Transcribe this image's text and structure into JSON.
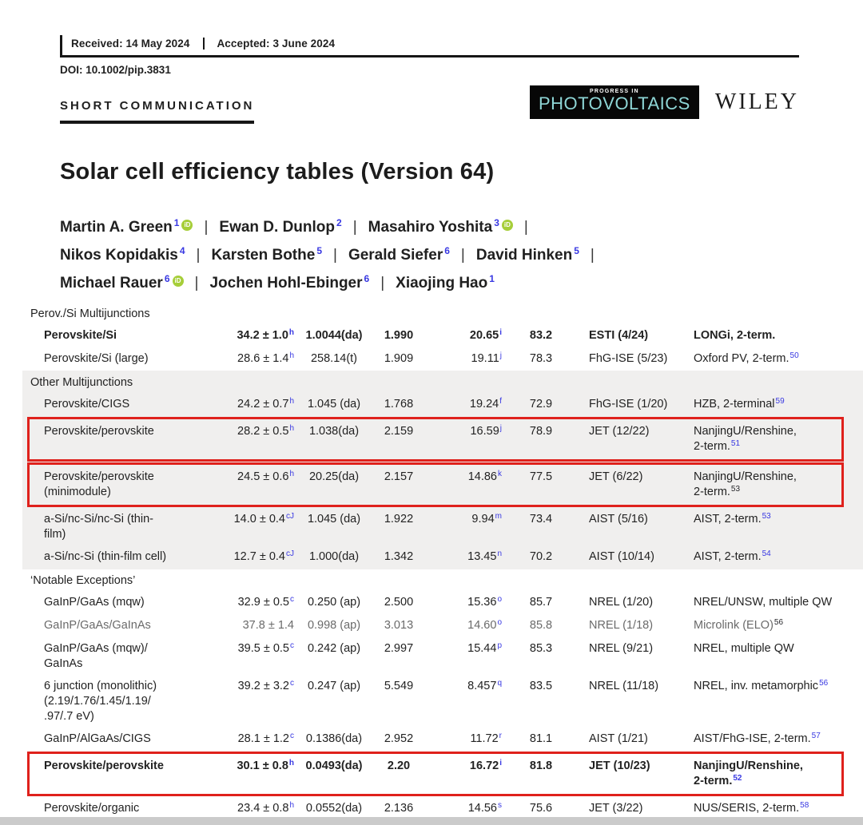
{
  "header": {
    "received_label": "Received: 14 May 2024",
    "accepted_label": "Accepted: 3 June 2024",
    "doi": "DOI: 10.1002/pip.3831",
    "article_type": "SHORT COMMUNICATION",
    "journal_logo": {
      "tagline": "PROGRESS IN",
      "name": "PHOTOVOLTAICS",
      "bg_color": "#070707",
      "text_color": "#8ed6d6"
    },
    "publisher": "WILEY"
  },
  "title": "Solar cell efficiency tables (Version 64)",
  "author_separator": "|",
  "orcid_badge_label": "iD",
  "authors": [
    {
      "name": "Martin A. Green",
      "sup": "1",
      "orcid": true
    },
    {
      "name": "Ewan D. Dunlop",
      "sup": "2",
      "orcid": false
    },
    {
      "name": "Masahiro Yoshita",
      "sup": "3",
      "orcid": true
    },
    {
      "name": "Nikos Kopidakis",
      "sup": "4",
      "orcid": false
    },
    {
      "name": "Karsten Bothe",
      "sup": "5",
      "orcid": false
    },
    {
      "name": "Gerald Siefer",
      "sup": "6",
      "orcid": false
    },
    {
      "name": "David Hinken",
      "sup": "5",
      "orcid": false
    },
    {
      "name": "Michael Rauer",
      "sup": "6",
      "orcid": true
    },
    {
      "name": "Jochen Hohl-Ebinger",
      "sup": "6",
      "orcid": false
    },
    {
      "name": "Xiaojing Hao",
      "sup": "1",
      "orcid": false
    }
  ],
  "authors_lines": [
    [
      0,
      1,
      2
    ],
    [
      3,
      4,
      5,
      6
    ],
    [
      7,
      8,
      9
    ]
  ],
  "table": {
    "sections": [
      {
        "label": "Perov./Si Multijunctions",
        "band": false,
        "rows": [
          {
            "classification": "Perovskite/Si",
            "bold": true,
            "gray": false,
            "highlight": false,
            "efficiency": "34.2 ± 1.0",
            "eff_sup": "h",
            "area": "1.0044(da)",
            "voc": "1.990",
            "jsc": "20.65",
            "jsc_sup": "i",
            "ff": "83.2",
            "test_centre": "ESTI (4/24)",
            "description": "LONGi, 2-term.",
            "desc_sup": "",
            "desc_sup_dark": false
          },
          {
            "classification": "Perovskite/Si (large)",
            "bold": false,
            "gray": false,
            "highlight": false,
            "efficiency": "28.6 ± 1.4",
            "eff_sup": "h",
            "area": "258.14(t)",
            "voc": "1.909",
            "jsc": "19.11",
            "jsc_sup": "j",
            "ff": "78.3",
            "test_centre": "FhG-ISE (5/23)",
            "description": "Oxford PV, 2-term.",
            "desc_sup": "50",
            "desc_sup_dark": false
          }
        ]
      },
      {
        "label": "Other Multijunctions",
        "band": true,
        "rows": [
          {
            "classification": "Perovskite/CIGS",
            "bold": false,
            "gray": false,
            "highlight": false,
            "efficiency": "24.2 ± 0.7",
            "eff_sup": "h",
            "area": "1.045 (da)",
            "voc": "1.768",
            "jsc": "19.24",
            "jsc_sup": "f",
            "ff": "72.9",
            "test_centre": "FhG-ISE (1/20)",
            "description": "HZB, 2-terminal",
            "desc_sup": "59",
            "desc_sup_dark": false
          },
          {
            "classification": "Perovskite/perovskite",
            "bold": false,
            "gray": false,
            "highlight": true,
            "efficiency": "28.2 ± 0.5",
            "eff_sup": "h",
            "area": "1.038(da)",
            "voc": "2.159",
            "jsc": "16.59",
            "jsc_sup": "j",
            "ff": "78.9",
            "test_centre": "JET (12/22)",
            "description": "NanjingU/Renshine,\n2-term.",
            "desc_sup": "51",
            "desc_sup_dark": false
          },
          {
            "classification": "Perovskite/perovskite\n(minimodule)",
            "bold": false,
            "gray": false,
            "highlight": true,
            "efficiency": "24.5 ± 0.6",
            "eff_sup": "h",
            "area": "20.25(da)",
            "voc": "2.157",
            "jsc": "14.86",
            "jsc_sup": "k",
            "ff": "77.5",
            "test_centre": "JET (6/22)",
            "description": "NanjingU/Renshine,\n2-term.",
            "desc_sup": "53",
            "desc_sup_dark": true
          },
          {
            "classification": "a-Si/nc-Si/nc-Si (thin-\nfilm)",
            "bold": false,
            "gray": false,
            "highlight": false,
            "efficiency": "14.0 ± 0.4",
            "eff_sup": "cJ",
            "area": "1.045 (da)",
            "voc": "1.922",
            "jsc": "9.94",
            "jsc_sup": "m",
            "ff": "73.4",
            "test_centre": "AIST (5/16)",
            "description": "AIST, 2-term.",
            "desc_sup": "53",
            "desc_sup_dark": false
          },
          {
            "classification": "a-Si/nc-Si (thin-film cell)",
            "bold": false,
            "gray": false,
            "highlight": false,
            "efficiency": "12.7 ± 0.4",
            "eff_sup": "cJ",
            "area": "1.000(da)",
            "voc": "1.342",
            "jsc": "13.45",
            "jsc_sup": "n",
            "ff": "70.2",
            "test_centre": "AIST (10/14)",
            "description": "AIST, 2-term.",
            "desc_sup": "54",
            "desc_sup_dark": false
          }
        ]
      },
      {
        "label": "‘Notable Exceptions’",
        "band": false,
        "rows": [
          {
            "classification": "GaInP/GaAs (mqw)",
            "bold": false,
            "gray": false,
            "highlight": false,
            "efficiency": "32.9 ± 0.5",
            "eff_sup": "c",
            "area": "0.250 (ap)",
            "voc": "2.500",
            "jsc": "15.36",
            "jsc_sup": "o",
            "ff": "85.7",
            "test_centre": "NREL (1/20)",
            "description": "NREL/UNSW, multiple QW",
            "desc_sup": "",
            "desc_sup_dark": false
          },
          {
            "classification": "GaInP/GaAs/GaInAs",
            "bold": false,
            "gray": true,
            "highlight": false,
            "efficiency": "37.8 ± 1.4",
            "eff_sup": "",
            "area": "0.998 (ap)",
            "voc": "3.013",
            "jsc": "14.60",
            "jsc_sup": "o",
            "ff": "85.8",
            "test_centre": "NREL (1/18)",
            "description": "Microlink (ELO)",
            "desc_sup": "56",
            "desc_sup_dark": true
          },
          {
            "classification": "GaInP/GaAs (mqw)/\nGaInAs",
            "bold": false,
            "gray": false,
            "highlight": false,
            "efficiency": "39.5 ± 0.5",
            "eff_sup": "c",
            "area": "0.242 (ap)",
            "voc": "2.997",
            "jsc": "15.44",
            "jsc_sup": "p",
            "ff": "85.3",
            "test_centre": "NREL (9/21)",
            "description": "NREL, multiple QW",
            "desc_sup": "",
            "desc_sup_dark": false
          },
          {
            "classification": "6 junction (monolithic)\n(2.19/1.76/1.45/1.19/\n.97/.7 eV)",
            "bold": false,
            "gray": false,
            "highlight": false,
            "efficiency": "39.2 ± 3.2",
            "eff_sup": "c",
            "area": "0.247 (ap)",
            "voc": "5.549",
            "jsc": "8.457",
            "jsc_sup": "q",
            "ff": "83.5",
            "test_centre": "NREL (11/18)",
            "description": "NREL, inv. metamorphic",
            "desc_sup": "56",
            "desc_sup_dark": false
          },
          {
            "classification": "GaInP/AlGaAs/CIGS",
            "bold": false,
            "gray": false,
            "highlight": false,
            "efficiency": "28.1 ± 1.2",
            "eff_sup": "c",
            "area": "0.1386(da)",
            "voc": "2.952",
            "jsc": "11.72",
            "jsc_sup": "r",
            "ff": "81.1",
            "test_centre": "AIST (1/21)",
            "description": "AIST/FhG-ISE, 2-term.",
            "desc_sup": "57",
            "desc_sup_dark": false
          },
          {
            "classification": "Perovskite/perovskite",
            "bold": true,
            "gray": false,
            "highlight": true,
            "efficiency": "30.1 ± 0.8",
            "eff_sup": "h",
            "area": "0.0493(da)",
            "voc": "2.20",
            "jsc": "16.72",
            "jsc_sup": "i",
            "ff": "81.8",
            "test_centre": "JET (10/23)",
            "description": "NanjingU/Renshine,\n2-term.",
            "desc_sup": "52",
            "desc_sup_dark": false
          },
          {
            "classification": "Perovskite/organic",
            "bold": false,
            "gray": false,
            "highlight": false,
            "efficiency": "23.4 ± 0.8",
            "eff_sup": "h",
            "area": "0.0552(da)",
            "voc": "2.136",
            "jsc": "14.56",
            "jsc_sup": "s",
            "ff": "75.6",
            "test_centre": "JET (3/22)",
            "description": "NUS/SERIS, 2-term.",
            "desc_sup": "58",
            "desc_sup_dark": false
          }
        ]
      }
    ]
  },
  "colors": {
    "accent_red": "#df211c",
    "link_blue": "#3838e2",
    "orcid_green": "#a6ce39",
    "logo_teal": "#8ed6d6",
    "band_gray": "#f0efee",
    "muted_row_gray": "#6a6a6a",
    "bottom_strip_gray": "#cbcbcb"
  }
}
